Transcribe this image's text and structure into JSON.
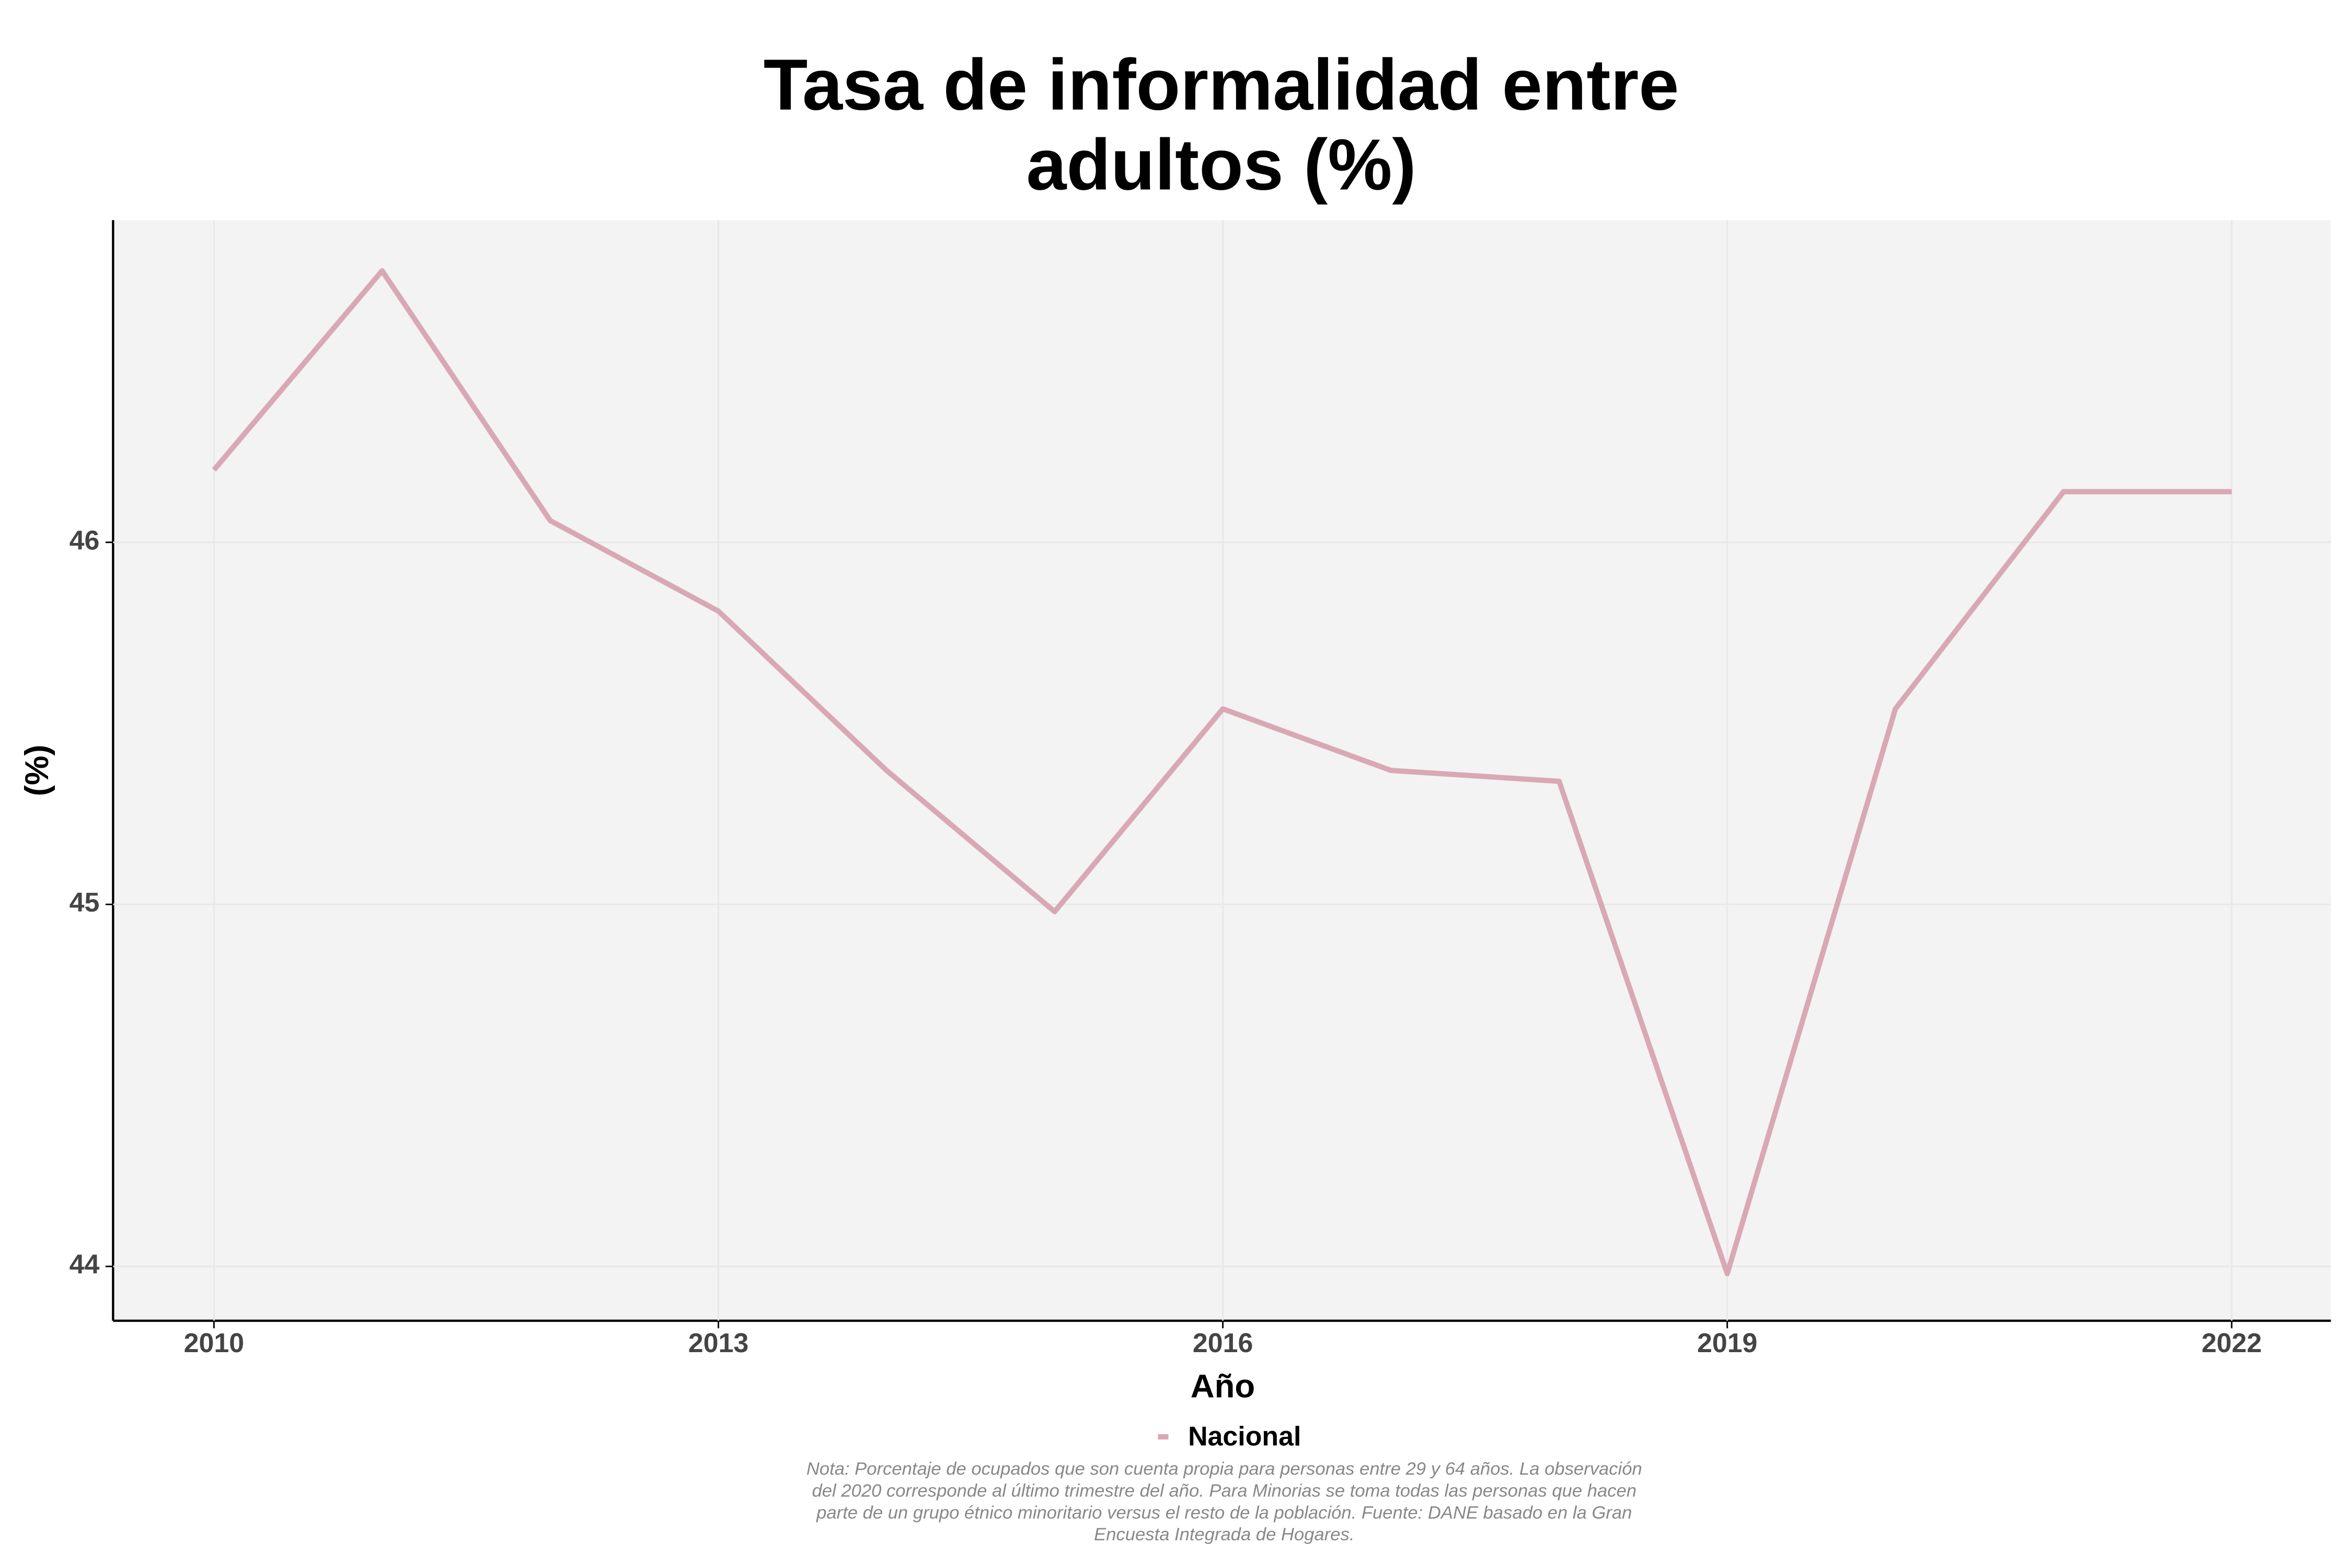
{
  "chart_data": {
    "type": "line",
    "title": [
      "Tasa de informalidad entre",
      "adultos (%)"
    ],
    "x_label": "Año",
    "y_label": "(%)",
    "x": [
      2010,
      2011,
      2012,
      2013,
      2014,
      2015,
      2016,
      2017,
      2018,
      2019,
      2020,
      2021,
      2022
    ],
    "series": [
      {
        "name": "Nacional",
        "color": "#d9a8b5",
        "values": [
          46.2,
          46.75,
          46.06,
          45.81,
          45.37,
          44.98,
          45.54,
          45.37,
          45.34,
          43.98,
          45.54,
          46.14,
          46.14
        ]
      }
    ],
    "xlim": [
      2009.4,
      2022.59
    ],
    "xticks": [
      2010,
      2013,
      2016,
      2019,
      2022
    ],
    "ylim": [
      43.85,
      46.89
    ],
    "yticks": [
      44,
      45,
      46
    ],
    "grid": true,
    "legend": "bottom",
    "note": [
      "Nota: Porcentaje de ocupados que son cuenta propia para personas entre 29 y 64 años. La observación",
      "del 2020 corresponde al último trimestre del año. Para Minorias se toma todas las personas que hacen",
      "parte de un grupo étnico minoritario versus el resto de la población. Fuente: DANE basado en la Gran",
      "Encuesta Integrada de Hogares."
    ]
  }
}
